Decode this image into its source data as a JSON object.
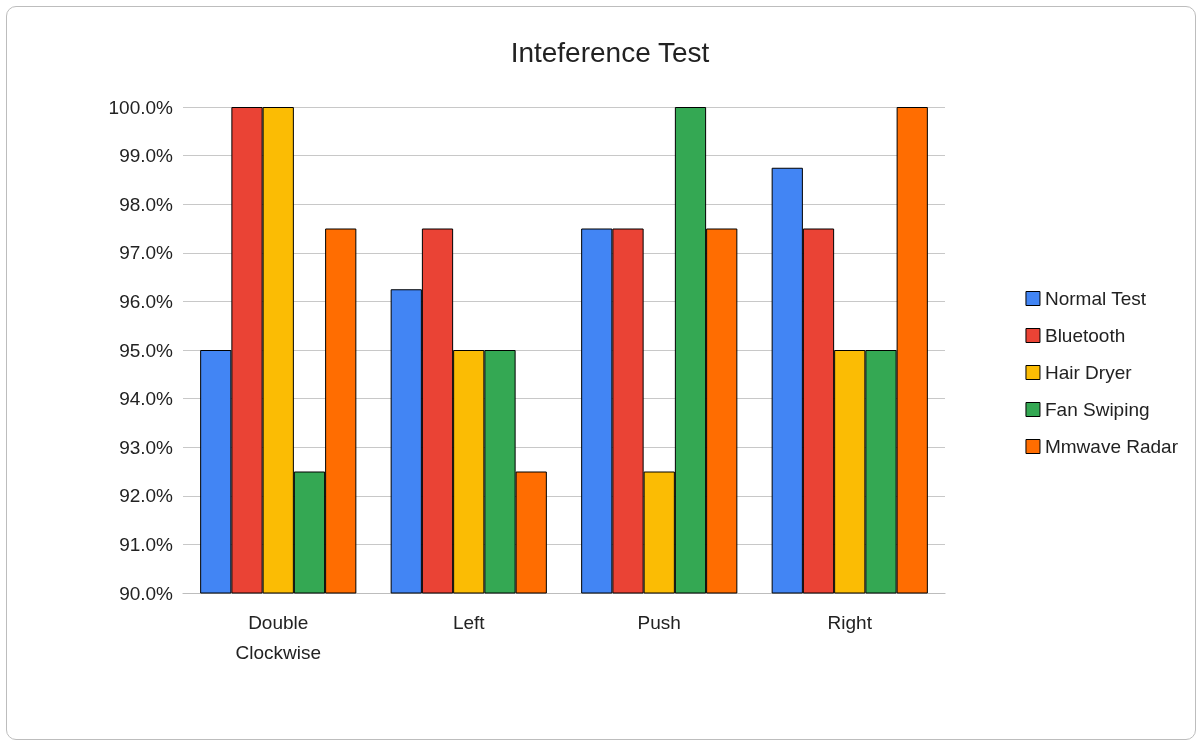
{
  "chart_data": {
    "type": "bar",
    "title": "Inteference Test",
    "categories": [
      "Double\nClockwise",
      "Left",
      "Push",
      "Right"
    ],
    "series": [
      {
        "name": "Normal Test",
        "color": "#4285f4",
        "values": [
          95,
          96.25,
          97.5,
          98.75
        ]
      },
      {
        "name": "Bluetooth",
        "color": "#ea4335",
        "values": [
          100,
          97.5,
          97.5,
          97.5
        ]
      },
      {
        "name": "Hair Dryer",
        "color": "#fbbc04",
        "values": [
          100,
          95,
          92.5,
          95
        ]
      },
      {
        "name": "Fan Swiping",
        "color": "#34a853",
        "values": [
          92.5,
          95,
          100,
          95
        ]
      },
      {
        "name": "Mmwave Radar",
        "color": "#ff6d01",
        "values": [
          97.5,
          92.5,
          97.5,
          100
        ]
      }
    ],
    "ylim": [
      90,
      100
    ],
    "yticks": [
      {
        "value": 90,
        "label": "90.0%"
      },
      {
        "value": 91,
        "label": "91.0%"
      },
      {
        "value": 92,
        "label": "92.0%"
      },
      {
        "value": 93,
        "label": "93.0%"
      },
      {
        "value": 94,
        "label": "94.0%"
      },
      {
        "value": 95,
        "label": "95.0%"
      },
      {
        "value": 96,
        "label": "96.0%"
      },
      {
        "value": 97,
        "label": "97.0%"
      },
      {
        "value": 98,
        "label": "98.0%"
      },
      {
        "value": 99,
        "label": "99.0%"
      },
      {
        "value": 100,
        "label": "100.0%"
      }
    ],
    "grid": "y",
    "legend": "right"
  }
}
